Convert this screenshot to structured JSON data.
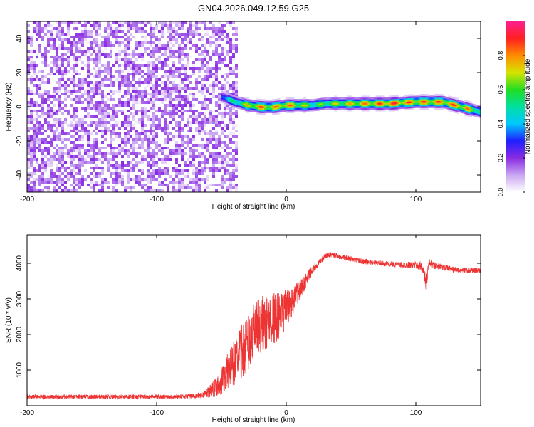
{
  "title": "GN04.2026.049.12.59.G25",
  "chart_data": [
    {
      "type": "heatmap",
      "xlabel": "Height of straight line (km)",
      "ylabel": "Frequency (Hz)",
      "xlim": [
        -200,
        150
      ],
      "ylim": [
        -50,
        50
      ],
      "xticks": [
        -200,
        -100,
        0,
        100
      ],
      "yticks": [
        -40,
        -20,
        0,
        20,
        40
      ],
      "colorbar": {
        "label": "Normalized spectral amplitude",
        "range": [
          0,
          1
        ],
        "ticks": [
          "0.0",
          "0.2",
          "0.4",
          "0.6",
          "0.8"
        ],
        "colors": [
          "#ffffff",
          "#c9a6f2",
          "#8a2be2",
          "#1f1fff",
          "#00c8ff",
          "#00e0a0",
          "#22dd22",
          "#d6e400",
          "#ff8c00",
          "#ff2020",
          "#ff2090"
        ]
      },
      "noise_region_x": [
        -200,
        -38
      ],
      "noise_amplitude_range": [
        0.0,
        0.2
      ],
      "ridge": {
        "x": [
          -50,
          -40,
          -30,
          -20,
          -10,
          0,
          10,
          20,
          30,
          40,
          60,
          80,
          100,
          120,
          130,
          140,
          150
        ],
        "frequency_hz": [
          6,
          3,
          1,
          0,
          0,
          1,
          1,
          1,
          2,
          2,
          2,
          2,
          3,
          3,
          1,
          -1,
          -3
        ],
        "peak_amplitude": [
          0.45,
          0.6,
          0.8,
          0.9,
          0.85,
          0.9,
          0.8,
          0.65,
          0.7,
          0.75,
          0.85,
          0.95,
          0.9,
          0.9,
          0.92,
          0.85,
          0.6
        ]
      }
    },
    {
      "type": "line",
      "xlabel": "Height of straight line (km)",
      "ylabel": "SNR (10 * v/v)",
      "xlim": [
        -200,
        150
      ],
      "ylim": [
        0,
        4800
      ],
      "xticks": [
        -200,
        -100,
        0,
        100
      ],
      "yticks": [
        1000,
        2000,
        3000,
        4000
      ],
      "series": [
        {
          "name": "SNR",
          "color": "#ee3333",
          "x": [
            -200,
            -180,
            -160,
            -140,
            -120,
            -100,
            -80,
            -65,
            -55,
            -50,
            -45,
            -40,
            -35,
            -30,
            -25,
            -20,
            -15,
            -10,
            -5,
            0,
            5,
            10,
            15,
            20,
            25,
            30,
            35,
            40,
            50,
            60,
            70,
            80,
            90,
            100,
            105,
            108,
            110,
            120,
            130,
            140,
            150
          ],
          "y": [
            250,
            250,
            250,
            250,
            250,
            250,
            260,
            290,
            500,
            700,
            950,
            1200,
            1500,
            1750,
            2000,
            2200,
            2350,
            2450,
            2550,
            2700,
            2950,
            3200,
            3500,
            3800,
            4000,
            4200,
            4250,
            4200,
            4120,
            4050,
            4000,
            3980,
            3950,
            3950,
            3900,
            3400,
            4000,
            3900,
            3820,
            3800,
            3780
          ],
          "noise_spread": [
            120,
            120,
            120,
            120,
            120,
            120,
            120,
            150,
            500,
            800,
            1100,
            1300,
            1500,
            1600,
            1700,
            1700,
            1600,
            1500,
            1300,
            1100,
            800,
            600,
            400,
            250,
            180,
            160,
            150,
            150,
            150,
            150,
            150,
            150,
            170,
            200,
            300,
            500,
            250,
            180,
            160,
            150,
            150
          ]
        }
      ]
    }
  ]
}
